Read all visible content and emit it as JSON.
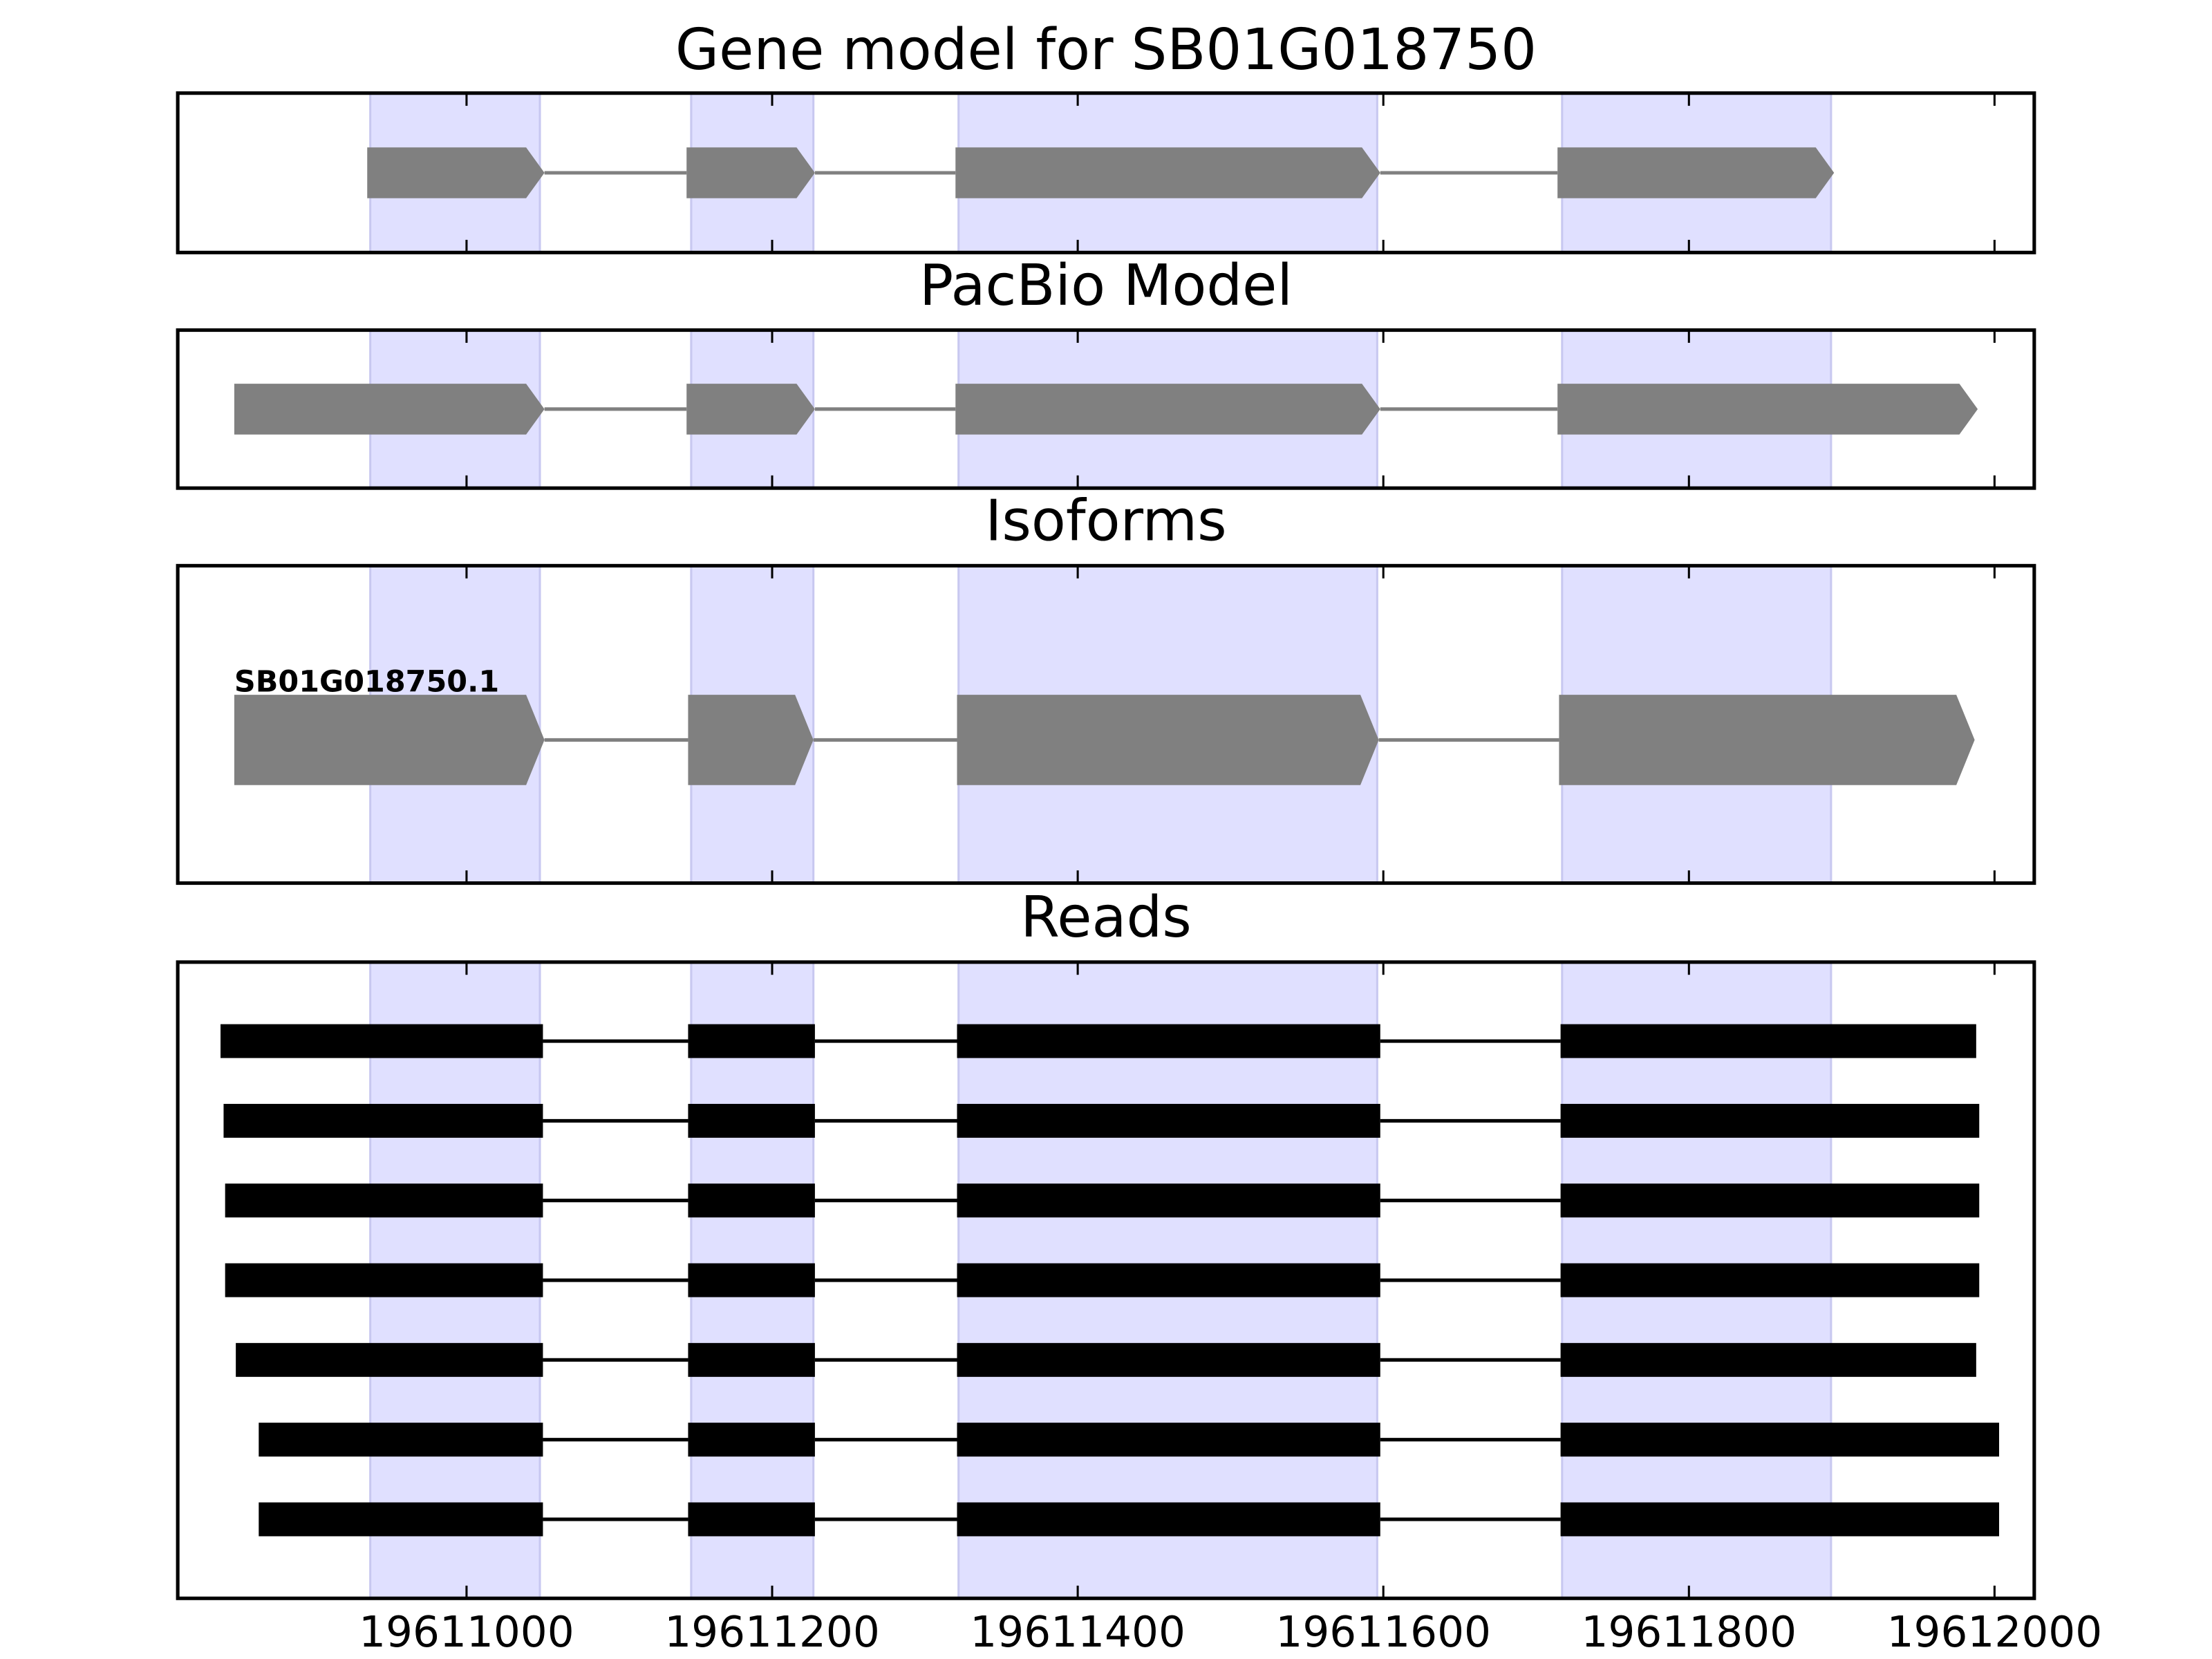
{
  "chart_data": [
    {
      "type": "gene_model",
      "title": "Gene model for SB01G018750",
      "color": "#808080",
      "highlight_color": "#e0e0ff",
      "xlim": [
        19610811,
        19612026
      ],
      "highlights": [
        [
          19610937,
          19611048
        ],
        [
          19611147,
          19611227
        ],
        [
          19611322,
          19611596
        ],
        [
          19611717,
          19611893
        ]
      ],
      "exons": [
        [
          19610935,
          19611051
        ],
        [
          19611144,
          19611228
        ],
        [
          19611320,
          19611598
        ],
        [
          19611714,
          19611895
        ]
      ]
    },
    {
      "type": "gene_model",
      "title": "PacBio Model",
      "color": "#808080",
      "highlight_color": "#e0e0ff",
      "xlim": [
        19610811,
        19612026
      ],
      "highlights": [
        [
          19610937,
          19611048
        ],
        [
          19611147,
          19611227
        ],
        [
          19611322,
          19611596
        ],
        [
          19611717,
          19611893
        ]
      ],
      "exons": [
        [
          19610848,
          19611051
        ],
        [
          19611144,
          19611228
        ],
        [
          19611320,
          19611598
        ],
        [
          19611714,
          19611989
        ]
      ]
    },
    {
      "type": "isoforms",
      "title": "Isoforms",
      "color": "#808080",
      "highlight_color": "#e0e0ff",
      "xlim": [
        19610811,
        19612026
      ],
      "highlights": [
        [
          19610937,
          19611048
        ],
        [
          19611147,
          19611227
        ],
        [
          19611322,
          19611596
        ],
        [
          19611717,
          19611893
        ]
      ],
      "isoforms": [
        {
          "name": "SB01G018750.1",
          "exons": [
            [
              19610848,
              19611051
            ],
            [
              19611145,
              19611227
            ],
            [
              19611321,
              19611597
            ],
            [
              19611715,
              19611987
            ]
          ]
        }
      ]
    },
    {
      "type": "reads",
      "title": "Reads",
      "color": "#000000",
      "highlight_color": "#e0e0ff",
      "xlim": [
        19610811,
        19612026
      ],
      "xticks": [
        19611000,
        19611200,
        19611400,
        19611600,
        19611800,
        19612000
      ],
      "highlights": [
        [
          19610937,
          19611048
        ],
        [
          19611147,
          19611227
        ],
        [
          19611322,
          19611596
        ],
        [
          19611717,
          19611893
        ]
      ],
      "reads": [
        [
          [
            19610839,
            19611050
          ],
          [
            19611145,
            19611228
          ],
          [
            19611321,
            19611598
          ],
          [
            19611716,
            19611988
          ]
        ],
        [
          [
            19610841,
            19611050
          ],
          [
            19611145,
            19611228
          ],
          [
            19611321,
            19611598
          ],
          [
            19611716,
            19611990
          ]
        ],
        [
          [
            19610842,
            19611050
          ],
          [
            19611145,
            19611228
          ],
          [
            19611321,
            19611598
          ],
          [
            19611716,
            19611990
          ]
        ],
        [
          [
            19610842,
            19611050
          ],
          [
            19611145,
            19611228
          ],
          [
            19611321,
            19611598
          ],
          [
            19611716,
            19611990
          ]
        ],
        [
          [
            19610849,
            19611050
          ],
          [
            19611145,
            19611228
          ],
          [
            19611321,
            19611598
          ],
          [
            19611716,
            19611988
          ]
        ],
        [
          [
            19610864,
            19611050
          ],
          [
            19611145,
            19611228
          ],
          [
            19611321,
            19611598
          ],
          [
            19611716,
            19612003
          ]
        ],
        [
          [
            19610864,
            19611050
          ],
          [
            19611145,
            19611228
          ],
          [
            19611321,
            19611598
          ],
          [
            19611716,
            19612003
          ]
        ]
      ]
    }
  ]
}
